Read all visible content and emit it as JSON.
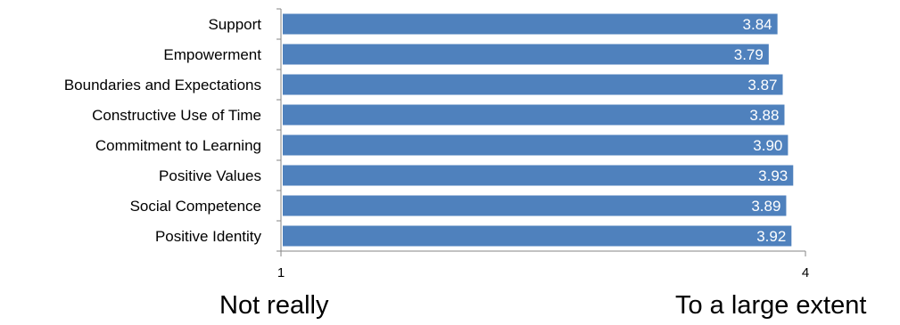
{
  "chart_data": {
    "type": "bar",
    "orientation": "horizontal",
    "categories": [
      "Support",
      "Empowerment",
      "Boundaries and Expectations",
      "Constructive Use of Time",
      "Commitment to Learning",
      "Positive Values",
      "Social Competence",
      "Positive Identity"
    ],
    "values": [
      3.84,
      3.79,
      3.87,
      3.88,
      3.9,
      3.93,
      3.89,
      3.92
    ],
    "value_labels": [
      "3.84",
      "3.79",
      "3.87",
      "3.88",
      "3.90",
      "3.93",
      "3.89",
      "3.92"
    ],
    "xlim": [
      1,
      4
    ],
    "x_ticks": [
      "1",
      "4"
    ],
    "scale_labels": {
      "low": "Not really",
      "high": "To a large extent"
    },
    "grid": false,
    "bar_color": "#4f81bd",
    "axis_color": "#868686"
  }
}
